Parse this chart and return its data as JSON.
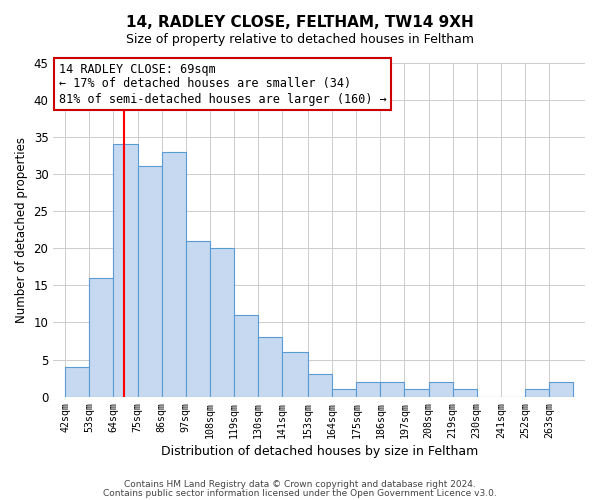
{
  "title": "14, RADLEY CLOSE, FELTHAM, TW14 9XH",
  "subtitle": "Size of property relative to detached houses in Feltham",
  "xlabel": "Distribution of detached houses by size in Feltham",
  "ylabel": "Number of detached properties",
  "bin_labels": [
    "42sqm",
    "53sqm",
    "64sqm",
    "75sqm",
    "86sqm",
    "97sqm",
    "108sqm",
    "119sqm",
    "130sqm",
    "141sqm",
    "153sqm",
    "164sqm",
    "175sqm",
    "186sqm",
    "197sqm",
    "208sqm",
    "219sqm",
    "230sqm",
    "241sqm",
    "252sqm",
    "263sqm"
  ],
  "bin_edges": [
    42,
    53,
    64,
    75,
    86,
    97,
    108,
    119,
    130,
    141,
    153,
    164,
    175,
    186,
    197,
    208,
    219,
    230,
    241,
    252,
    263,
    274
  ],
  "bar_heights": [
    4,
    16,
    34,
    31,
    33,
    21,
    20,
    11,
    8,
    6,
    3,
    1,
    2,
    2,
    1,
    2,
    1,
    0,
    0,
    1,
    2
  ],
  "bar_color": "#c6d9f0",
  "bar_edgecolor": "#5b9bd5",
  "vline_x": 69,
  "vline_color": "#ff0000",
  "annotation_line1": "14 RADLEY CLOSE: 69sqm",
  "annotation_line2": "← 17% of detached houses are smaller (34)",
  "annotation_line3": "81% of semi-detached houses are larger (160) →",
  "ylim": [
    0,
    45
  ],
  "yticks": [
    0,
    5,
    10,
    15,
    20,
    25,
    30,
    35,
    40,
    45
  ],
  "footer_line1": "Contains HM Land Registry data © Crown copyright and database right 2024.",
  "footer_line2": "Contains public sector information licensed under the Open Government Licence v3.0.",
  "background_color": "#ffffff",
  "grid_color": "#cccccc",
  "title_fontsize": 11,
  "subtitle_fontsize": 9,
  "annotation_fontsize": 8.5,
  "annotation_box_edgecolor": "#cc0000"
}
